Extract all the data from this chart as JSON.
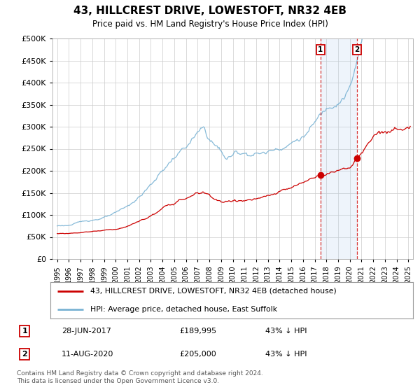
{
  "title": "43, HILLCREST DRIVE, LOWESTOFT, NR32 4EB",
  "subtitle": "Price paid vs. HM Land Registry's House Price Index (HPI)",
  "hpi_line_color": "#7ab3d4",
  "price_color": "#cc0000",
  "ylim": [
    0,
    500000
  ],
  "yticks": [
    0,
    50000,
    100000,
    150000,
    200000,
    250000,
    300000,
    350000,
    400000,
    450000,
    500000
  ],
  "transaction1_date": 2017.49,
  "transaction1_price": 189995,
  "transaction2_date": 2020.61,
  "transaction2_price": 205000,
  "legend_line1": "43, HILLCREST DRIVE, LOWESTOFT, NR32 4EB (detached house)",
  "legend_line2": "HPI: Average price, detached house, East Suffolk",
  "note1_date": "28-JUN-2017",
  "note1_price": "£189,995",
  "note1_hpi": "43% ↓ HPI",
  "note2_date": "11-AUG-2020",
  "note2_price": "£205,000",
  "note2_hpi": "43% ↓ HPI",
  "footer": "Contains HM Land Registry data © Crown copyright and database right 2024.\nThis data is licensed under the Open Government Licence v3.0.",
  "background_color": "#ffffff",
  "grid_color": "#cccccc",
  "span_color": "#ddeeff"
}
